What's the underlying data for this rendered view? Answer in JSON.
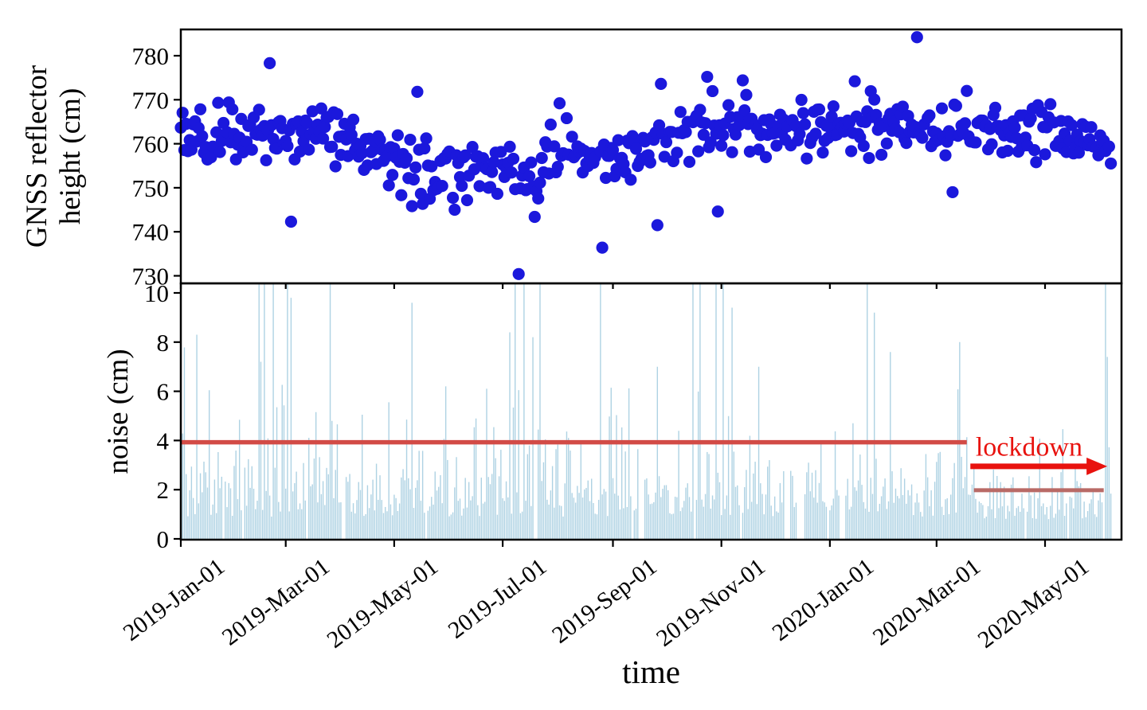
{
  "figure": {
    "xlabel": "time",
    "background": "#ffffff",
    "axis_color": "#000000"
  },
  "chart_data": [
    {
      "type": "scatter",
      "panel": "top",
      "ylabel_lines": [
        "GNSS reflector",
        "height (cm)"
      ],
      "ylim": [
        728.3,
        786.0
      ],
      "yticks": [
        730,
        740,
        750,
        760,
        770,
        780
      ],
      "x_start_date": "2019-Jan-01",
      "x_end_day": 529,
      "marker_color": "#1b18dc",
      "marker_radius": 7.6,
      "seed": 1337,
      "skip_prob": 0.05,
      "noise_sd_keypoints": [
        [
          0,
          3.2
        ],
        [
          120,
          3.9
        ],
        [
          200,
          3.9
        ],
        [
          300,
          3.5
        ],
        [
          420,
          3.5
        ],
        [
          480,
          2.7
        ],
        [
          523,
          2.2
        ]
      ],
      "trend_keypoints": [
        [
          0,
          761.5
        ],
        [
          25,
          763.0
        ],
        [
          59,
          762.5
        ],
        [
          85,
          761.5
        ],
        [
          110,
          758.0
        ],
        [
          135,
          755.5
        ],
        [
          160,
          753.5
        ],
        [
          181,
          753.0
        ],
        [
          200,
          754.0
        ],
        [
          220,
          755.5
        ],
        [
          243,
          757.5
        ],
        [
          265,
          760.5
        ],
        [
          290,
          762.5
        ],
        [
          304,
          763.0
        ],
        [
          334,
          763.5
        ],
        [
          365,
          763.5
        ],
        [
          395,
          764.0
        ],
        [
          425,
          763.5
        ],
        [
          455,
          763.0
        ],
        [
          486,
          762.5
        ],
        [
          510,
          760.5
        ],
        [
          523,
          759.5
        ]
      ],
      "outliers": [
        [
          50,
          778.3
        ],
        [
          62,
          742.3
        ],
        [
          133,
          771.8
        ],
        [
          190,
          730.4
        ],
        [
          213,
          769.2
        ],
        [
          237,
          736.4
        ],
        [
          268,
          741.5
        ],
        [
          270,
          773.6
        ],
        [
          296,
          775.2
        ],
        [
          302,
          744.6
        ],
        [
          379,
          774.2
        ],
        [
          414,
          784.2
        ],
        [
          434,
          749.0
        ]
      ]
    },
    {
      "type": "bar",
      "panel": "bottom",
      "ylabel": "noise (cm)",
      "ylim": [
        0,
        10.42
      ],
      "yticks": [
        0,
        2,
        4,
        6,
        8,
        10
      ],
      "bar_color": "#aed2e3",
      "bar_width": 1.4,
      "seed": 99,
      "gap_ranges": [
        [
          91,
          92
        ],
        [
          258,
          260
        ],
        [
          340,
          342
        ],
        [
          347,
          350
        ],
        [
          371,
          373
        ]
      ],
      "base_level": 0.9,
      "base_amp": 1.35,
      "lockdown_start_day": 446,
      "lockdown_base_amp": 0.95,
      "spike_prob_ranges": [
        [
          0,
          39,
          0.07
        ],
        [
          40,
          95,
          0.17
        ],
        [
          96,
          175,
          0.09
        ],
        [
          176,
          250,
          0.15
        ],
        [
          251,
          279,
          0.08
        ],
        [
          280,
          312,
          0.18
        ],
        [
          313,
          443,
          0.09
        ],
        [
          444,
          523,
          0.03
        ]
      ],
      "overrides": [
        [
          9,
          8.3
        ],
        [
          44,
          10.42
        ],
        [
          45,
          7.2
        ],
        [
          47,
          10.42
        ],
        [
          52,
          10.42
        ],
        [
          60,
          10.42
        ],
        [
          62,
          9.8
        ],
        [
          84,
          10.42
        ],
        [
          130,
          9.6
        ],
        [
          149,
          6.2
        ],
        [
          185,
          8.4
        ],
        [
          188,
          10.42
        ],
        [
          193,
          10.42
        ],
        [
          198,
          8.2
        ],
        [
          202,
          10.42
        ],
        [
          236,
          10.42
        ],
        [
          268,
          7.0
        ],
        [
          288,
          10.42
        ],
        [
          292,
          10.42
        ],
        [
          301,
          10.42
        ],
        [
          305,
          10.42
        ],
        [
          310,
          9.4
        ],
        [
          386,
          10.42
        ],
        [
          390,
          9.2
        ],
        [
          438,
          8.0
        ],
        [
          520,
          10.42
        ],
        [
          521,
          7.4
        ]
      ],
      "reference_lines": [
        {
          "name": "pre-lockdown-mean-line",
          "value": 3.93,
          "day_from": 0,
          "day_to": 442,
          "color": "#d24b46",
          "width": 5.5
        },
        {
          "name": "lockdown-mean-line",
          "value": 1.98,
          "day_from": 446,
          "day_to": 519,
          "color": "#b96a66",
          "width": 5
        }
      ],
      "annotation": {
        "label": "lockdown",
        "label_color": "#e8120e",
        "label_day_center": 477,
        "label_value_baseline": 3.38,
        "arrow_color": "#e8120e",
        "arrow_value": 2.95,
        "arrow_day_from": 444,
        "arrow_day_to": 521
      }
    }
  ],
  "x_axis": {
    "label": "time",
    "ticks": [
      {
        "label": "2019-Jan-01",
        "day": 0
      },
      {
        "label": "2019-Mar-01",
        "day": 59
      },
      {
        "label": "2019-May-01",
        "day": 120
      },
      {
        "label": "2019-Jul-01",
        "day": 181
      },
      {
        "label": "2019-Sep-01",
        "day": 243
      },
      {
        "label": "2019-Nov-01",
        "day": 304
      },
      {
        "label": "2020-Jan-01",
        "day": 365
      },
      {
        "label": "2020-Mar-01",
        "day": 425
      },
      {
        "label": "2020-May-01",
        "day": 486
      }
    ],
    "tick_label_rotation_deg": -37
  }
}
